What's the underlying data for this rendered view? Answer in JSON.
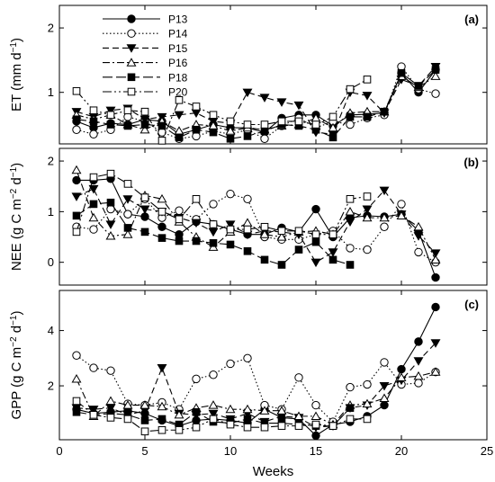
{
  "chart_data": {
    "type": "line",
    "x": [
      1,
      2,
      3,
      4,
      5,
      6,
      7,
      8,
      9,
      10,
      11,
      12,
      13,
      14,
      15,
      16,
      17,
      18,
      19,
      20,
      21,
      22
    ],
    "xlabel": "Weeks",
    "xlim": [
      0,
      25
    ],
    "xticks": [
      "0",
      "5",
      "10",
      "15",
      "20",
      "25"
    ],
    "grid": false,
    "legend": {
      "placement": "top-left inside panel (a)",
      "entries": [
        {
          "name": "P13",
          "dash": "solid",
          "marker": "circle",
          "fill": "#000000"
        },
        {
          "name": "P14",
          "dash": "dotted",
          "marker": "circle",
          "fill": "#ffffff"
        },
        {
          "name": "P15",
          "dash": "dashed",
          "marker": "triangle-down",
          "fill": "#000000"
        },
        {
          "name": "P16",
          "dash": "dashdot",
          "marker": "triangle-up",
          "fill": "#ffffff"
        },
        {
          "name": "P18",
          "dash": "longdash",
          "marker": "square",
          "fill": "#000000"
        },
        {
          "name": "P20",
          "dash": "dashdotdot",
          "marker": "square",
          "fill": "#ffffff"
        }
      ]
    },
    "panels": [
      {
        "label": "(a)",
        "ylabel_parts": [
          "ET (mm d",
          "−1",
          ")"
        ],
        "ylim": [
          0.2,
          2.35
        ],
        "yticks": [
          {
            "value": 1,
            "label": "1"
          },
          {
            "value": 2,
            "label": "2"
          }
        ],
        "series": [
          {
            "name": "P13",
            "values": [
              0.55,
              0.45,
              0.52,
              0.5,
              0.58,
              0.55,
              0.35,
              0.42,
              0.5,
              0.45,
              0.45,
              0.38,
              0.6,
              0.65,
              0.65,
              0.48,
              0.65,
              0.66,
              0.68,
              1.3,
              1.0,
              1.35
            ]
          },
          {
            "name": "P14",
            "values": [
              0.42,
              0.35,
              0.42,
              0.62,
              0.55,
              0.38,
              0.28,
              0.32,
              0.4,
              0.35,
              0.42,
              0.28,
              0.48,
              0.6,
              0.45,
              0.55,
              0.5,
              0.6,
              0.65,
              1.4,
              1.05,
              0.98
            ]
          },
          {
            "name": "P15",
            "values": [
              0.7,
              0.62,
              0.72,
              0.75,
              0.58,
              0.62,
              0.65,
              0.68,
              0.55,
              0.52,
              1.0,
              0.92,
              0.85,
              0.8,
              0.38,
              0.35,
              1.0,
              0.95,
              0.68,
              1.2,
              1.1,
              1.4
            ]
          },
          {
            "name": "P16",
            "values": [
              0.65,
              0.58,
              0.65,
              0.5,
              0.42,
              0.55,
              0.4,
              0.5,
              0.48,
              0.4,
              0.45,
              0.42,
              0.48,
              0.5,
              0.6,
              0.45,
              0.68,
              0.7,
              0.7,
              1.25,
              1.08,
              1.25
            ]
          },
          {
            "name": "P18",
            "values": [
              0.58,
              0.55,
              0.5,
              0.48,
              0.5,
              0.48,
              0.3,
              0.42,
              0.38,
              0.28,
              0.32,
              0.4,
              0.5,
              0.48,
              0.42,
              0.3,
              0.62,
              0.62,
              0.7,
              1.3,
              1.1,
              1.35
            ]
          },
          {
            "name": "P20",
            "values": [
              1.02,
              0.72,
              0.65,
              0.72,
              0.7,
              0.25,
              0.88,
              0.78,
              0.65,
              0.55,
              0.5,
              0.5,
              0.55,
              0.55,
              0.5,
              0.62,
              1.05,
              1.2,
              null,
              null,
              null,
              null
            ]
          }
        ]
      },
      {
        "label": "(b)",
        "ylabel_parts": [
          "NEE (g C m",
          "−2",
          " d",
          "−1",
          ")"
        ],
        "ylim": [
          -0.45,
          2.25
        ],
        "yticks": [
          {
            "value": 0,
            "label": "0"
          },
          {
            "value": 1,
            "label": "1"
          },
          {
            "value": 2,
            "label": "2"
          }
        ],
        "series": [
          {
            "name": "P13",
            "values": [
              1.62,
              1.62,
              1.65,
              0.95,
              0.9,
              0.7,
              0.55,
              0.8,
              0.75,
              0.65,
              0.55,
              0.55,
              0.68,
              0.6,
              1.05,
              0.5,
              0.88,
              0.92,
              0.9,
              0.95,
              0.62,
              -0.3
            ]
          },
          {
            "name": "P14",
            "values": [
              0.7,
              0.65,
              1.05,
              0.95,
              1.25,
              0.88,
              1.02,
              0.85,
              1.15,
              1.35,
              1.25,
              0.5,
              0.45,
              0.45,
              0.55,
              0.62,
              0.28,
              0.25,
              0.7,
              1.15,
              0.2,
              0.0
            ]
          },
          {
            "name": "P15",
            "values": [
              1.3,
              1.45,
              0.75,
              1.25,
              1.05,
              1.0,
              0.88,
              0.78,
              0.6,
              0.75,
              0.55,
              0.62,
              0.6,
              0.55,
              0.0,
              0.2,
              0.8,
              1.05,
              1.42,
              0.95,
              0.52,
              0.18
            ]
          },
          {
            "name": "P16",
            "values": [
              1.82,
              0.88,
              0.52,
              0.55,
              1.32,
              1.25,
              0.8,
              0.5,
              0.3,
              0.6,
              0.78,
              0.55,
              0.5,
              0.6,
              0.62,
              0.55,
              1.0,
              0.88,
              0.88,
              0.92,
              0.7,
              0.05
            ]
          },
          {
            "name": "P18",
            "values": [
              0.92,
              1.15,
              1.18,
              0.68,
              0.6,
              0.48,
              0.42,
              0.42,
              0.38,
              0.35,
              0.22,
              0.05,
              -0.05,
              0.25,
              0.4,
              0.05,
              -0.05,
              null,
              null,
              null,
              null,
              null
            ]
          },
          {
            "name": "P20",
            "values": [
              0.6,
              1.68,
              1.75,
              1.55,
              1.28,
              1.0,
              0.85,
              1.25,
              0.75,
              0.65,
              0.65,
              0.7,
              0.62,
              0.62,
              0.55,
              0.55,
              1.25,
              1.3,
              null,
              null,
              null,
              null
            ]
          }
        ]
      },
      {
        "label": "(c)",
        "ylabel_parts": [
          "GPP (g C m",
          "−2",
          " d",
          "−1",
          ")"
        ],
        "ylim": [
          0.05,
          5.45
        ],
        "yticks": [
          {
            "value": 2,
            "label": "2"
          },
          {
            "value": 4,
            "label": "4"
          }
        ],
        "series": [
          {
            "name": "P13",
            "values": [
              1.15,
              1.0,
              1.05,
              1.1,
              1.0,
              0.75,
              0.55,
              0.75,
              0.8,
              0.75,
              0.65,
              1.15,
              0.85,
              0.8,
              0.2,
              0.6,
              0.7,
              0.9,
              1.3,
              2.6,
              3.6,
              4.85
            ]
          },
          {
            "name": "P14",
            "values": [
              3.1,
              2.65,
              2.55,
              1.35,
              1.3,
              1.4,
              1.15,
              2.25,
              2.4,
              2.8,
              3.0,
              1.3,
              1.15,
              2.3,
              1.3,
              0.7,
              1.95,
              2.05,
              2.85,
              2.05,
              2.1,
              2.5
            ]
          },
          {
            "name": "P15",
            "values": [
              1.2,
              1.15,
              1.2,
              0.95,
              1.1,
              2.65,
              1.0,
              0.95,
              1.0,
              0.8,
              1.0,
              0.7,
              0.9,
              0.85,
              0.5,
              0.55,
              1.2,
              1.3,
              2.0,
              2.2,
              2.9,
              3.55
            ]
          },
          {
            "name": "P16",
            "values": [
              2.25,
              0.9,
              1.45,
              1.3,
              1.3,
              1.25,
              0.95,
              1.2,
              1.3,
              1.15,
              1.15,
              1.1,
              1.1,
              0.9,
              0.9,
              0.6,
              1.3,
              1.35,
              1.55,
              2.3,
              2.35,
              2.5
            ]
          },
          {
            "name": "P18",
            "values": [
              1.05,
              0.95,
              1.0,
              0.95,
              0.75,
              0.8,
              0.6,
              1.05,
              0.7,
              0.65,
              0.8,
              0.65,
              0.65,
              0.6,
              0.55,
              0.55,
              1.2,
              null,
              null,
              null,
              null,
              null
            ]
          },
          {
            "name": "P20",
            "values": [
              1.45,
              0.95,
              0.85,
              0.8,
              0.35,
              0.4,
              0.4,
              0.5,
              0.8,
              0.6,
              0.5,
              0.5,
              0.55,
              0.55,
              0.6,
              0.55,
              0.8,
              0.8,
              null,
              null,
              null,
              null
            ]
          }
        ]
      }
    ]
  }
}
